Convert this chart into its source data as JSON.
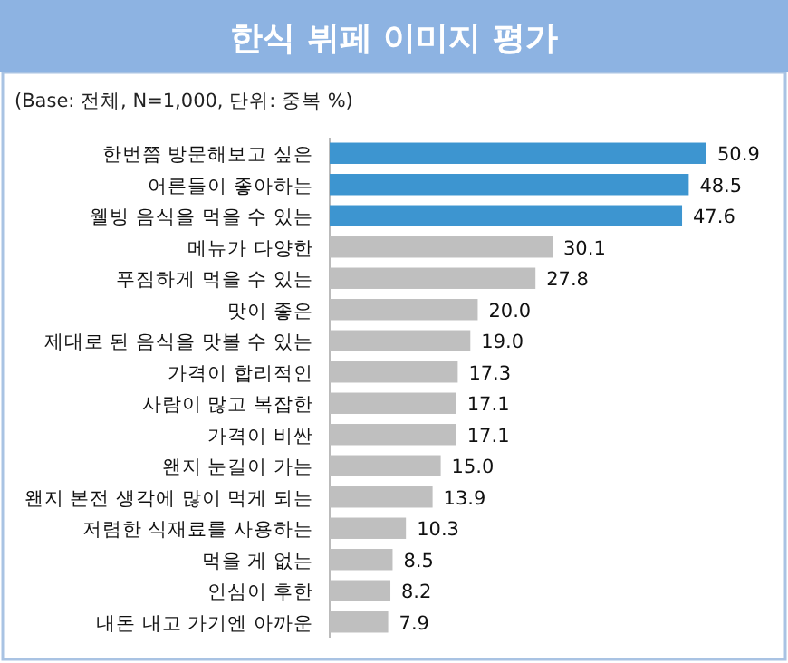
{
  "chart_data": {
    "type": "bar",
    "orientation": "horizontal",
    "title": "한식 뷔페 이미지 평가",
    "subtitle": "(Base: 전체, N=1,000, 단위: 중복 %)",
    "categories": [
      "한번쯤 방문해보고 싶은",
      "어른들이 좋아하는",
      "웰빙 음식을 먹을 수 있는",
      "메뉴가 다양한",
      "푸짐하게 먹을 수 있는",
      "맛이 좋은",
      "제대로 된 음식을 맛볼 수 있는",
      "가격이 합리적인",
      "사람이 많고 복잡한",
      "가격이 비싼",
      "왠지 눈길이 가는",
      "왠지 본전 생각에 많이 먹게 되는",
      "저렴한 식재료를 사용하는",
      "먹을 게 없는",
      "인심이 후한",
      "내돈 내고 가기엔 아까운"
    ],
    "values": [
      50.9,
      48.5,
      47.6,
      30.1,
      27.8,
      20.0,
      19.0,
      17.3,
      17.1,
      17.1,
      15.0,
      13.9,
      10.3,
      8.5,
      8.2,
      7.9
    ],
    "colors": [
      "#3d95d0",
      "#3d95d0",
      "#3d95d0",
      "#bfbfbf",
      "#bfbfbf",
      "#bfbfbf",
      "#bfbfbf",
      "#bfbfbf",
      "#bfbfbf",
      "#bfbfbf",
      "#bfbfbf",
      "#bfbfbf",
      "#bfbfbf",
      "#bfbfbf",
      "#bfbfbf",
      "#bfbfbf"
    ],
    "value_labels": [
      "50.9",
      "48.5",
      "47.6",
      "30.1",
      "27.8",
      "20.0",
      "19.0",
      "17.3",
      "17.1",
      "17.1",
      "15.0",
      "13.9",
      "10.3",
      "8.5",
      "8.2",
      "7.9"
    ]
  }
}
